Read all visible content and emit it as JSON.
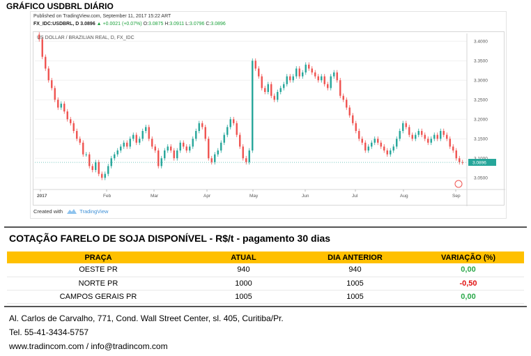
{
  "page_title": "GRÁFICO USDBRL DIÁRIO",
  "chart_meta": {
    "published": "Published on TradingView.com, September 11, 2017 15:22 ART",
    "symbol": "FX_IDC:USDBRL, D",
    "price": "3.0896",
    "change": "+0.0021 (+0.07%)",
    "open_label": "O:",
    "open": "3.0875",
    "high_label": "H:",
    "high": "3.0911",
    "low_label": "L:",
    "low": "3.0796",
    "close_label": "C:",
    "close": "3.0896",
    "created_with": "Created with",
    "brand": "TradingView"
  },
  "chart_data": {
    "type": "candlestick",
    "title": "US DOLLAR / BRAZILIAN REAL, D, FX_IDC",
    "ylim": [
      3.02,
      3.42
    ],
    "yticks": [
      "3.4000",
      "3.3500",
      "3.3000",
      "3.2500",
      "3.2000",
      "3.1500",
      "3.1000",
      "3.0500"
    ],
    "x_labels": [
      "2017",
      "Feb",
      "Mar",
      "Apr",
      "May",
      "Jun",
      "Jul",
      "Aug",
      "Sep"
    ],
    "last_price": "3.0896",
    "up_color": "#26a69a",
    "down_color": "#ef5350",
    "closes": [
      3.405,
      3.36,
      3.33,
      3.3,
      3.28,
      3.25,
      3.23,
      3.24,
      3.22,
      3.2,
      3.19,
      3.17,
      3.15,
      3.14,
      3.11,
      3.11,
      3.08,
      3.07,
      3.09,
      3.06,
      3.05,
      3.06,
      3.08,
      3.1,
      3.11,
      3.12,
      3.13,
      3.14,
      3.13,
      3.15,
      3.16,
      3.14,
      3.15,
      3.17,
      3.18,
      3.15,
      3.13,
      3.12,
      3.08,
      3.1,
      3.12,
      3.13,
      3.12,
      3.1,
      3.12,
      3.14,
      3.13,
      3.12,
      3.13,
      3.15,
      3.17,
      3.19,
      3.18,
      3.15,
      3.1,
      3.09,
      3.11,
      3.12,
      3.14,
      3.16,
      3.18,
      3.2,
      3.19,
      3.16,
      3.13,
      3.1,
      3.09,
      3.12,
      3.35,
      3.33,
      3.31,
      3.28,
      3.27,
      3.29,
      3.26,
      3.25,
      3.27,
      3.28,
      3.29,
      3.31,
      3.3,
      3.31,
      3.33,
      3.31,
      3.32,
      3.34,
      3.33,
      3.32,
      3.31,
      3.3,
      3.31,
      3.29,
      3.28,
      3.31,
      3.32,
      3.3,
      3.26,
      3.25,
      3.23,
      3.21,
      3.19,
      3.17,
      3.15,
      3.14,
      3.12,
      3.13,
      3.14,
      3.15,
      3.14,
      3.13,
      3.12,
      3.11,
      3.12,
      3.13,
      3.15,
      3.17,
      3.19,
      3.18,
      3.16,
      3.15,
      3.16,
      3.17,
      3.16,
      3.15,
      3.14,
      3.15,
      3.16,
      3.15,
      3.17,
      3.16,
      3.15,
      3.13,
      3.12,
      3.1,
      3.09,
      3.0896
    ]
  },
  "table": {
    "title": "COTAÇÃO FARELO DE SOJA DISPONÍVEL - R$/t - pagamento 30 dias",
    "headers": [
      "PRAÇA",
      "ATUAL",
      "DIA ANTERIOR",
      "VARIAÇÃO (%)"
    ],
    "rows": [
      {
        "praca": "OESTE PR",
        "atual": "940",
        "anterior": "940",
        "variacao": "0,00",
        "trend": "pos"
      },
      {
        "praca": "NORTE PR",
        "atual": "1000",
        "anterior": "1005",
        "variacao": "-0,50",
        "trend": "neg"
      },
      {
        "praca": "CAMPOS GERAIS PR",
        "atual": "1005",
        "anterior": "1005",
        "variacao": "0,00",
        "trend": "pos"
      }
    ]
  },
  "footer": {
    "address": "Al. Carlos de Carvalho, 771, Cond. Wall Street Center, sl. 405, Curitiba/Pr.",
    "phone": "Tel. 55-41-3434-5757",
    "web": "www.tradincom.com / info@tradincom.com"
  }
}
